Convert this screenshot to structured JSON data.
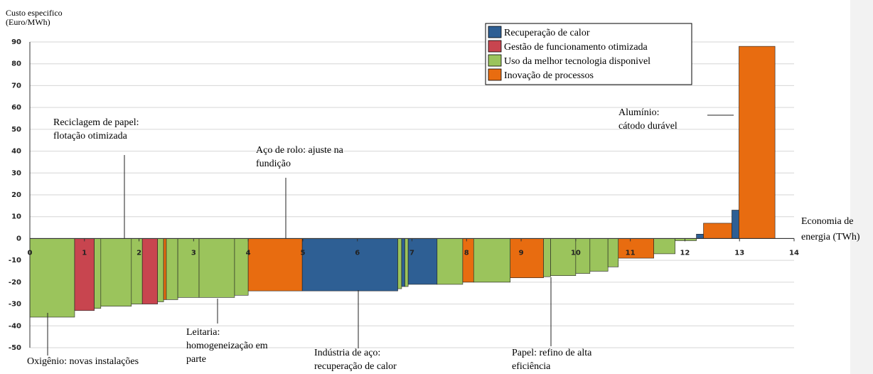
{
  "chart_data": {
    "type": "variable-width-bar",
    "ylabel": [
      "Custo especifico",
      "(Euro/MWh)"
    ],
    "xlabel": [
      "Economia de",
      "energia (TWh)"
    ],
    "xlim": [
      0,
      14
    ],
    "xticks": [
      0,
      1,
      2,
      3,
      4,
      5,
      6,
      7,
      8,
      9,
      10,
      11,
      12,
      13,
      14
    ],
    "ylim": [
      -50,
      90
    ],
    "yticks": [
      -50,
      -40,
      -30,
      -20,
      -10,
      0,
      10,
      20,
      30,
      40,
      50,
      60,
      70,
      80,
      90
    ],
    "grid": true,
    "series": [
      {
        "name": "Recuperação de calor",
        "color": "#2e5f94"
      },
      {
        "name": "Gestão de funcionamento otimizada",
        "color": "#c8454f"
      },
      {
        "name": "Uso da melhor tecnologia disponivel",
        "color": "#9bc45c"
      },
      {
        "name": "Inovação de processos",
        "color": "#e86c10"
      }
    ],
    "bars": {
      "widths": [
        0.82,
        0.36,
        0.12,
        0.56,
        0.2,
        0.28,
        0.11,
        0.05,
        0.21,
        0.39,
        0.65,
        0.25,
        0.99,
        1.75,
        0.07,
        0.06,
        0.06,
        0.53,
        0.47,
        0.2,
        0.67,
        0.61,
        0.13,
        0.46,
        0.26,
        0.33,
        0.19,
        0.65,
        0.39,
        0.39,
        0.13,
        0.52,
        0.13,
        0.66
      ],
      "values": [
        -36,
        -33,
        -32,
        -31,
        -30,
        -30,
        -29,
        -28,
        -28,
        -27,
        -27,
        -26,
        -24,
        -24,
        -23,
        -22,
        -22,
        -21,
        -21,
        -20,
        -20,
        -18,
        -17.5,
        -17,
        -16,
        -15,
        -13,
        -9,
        -7,
        -1,
        2,
        7,
        13,
        88
      ],
      "groups": [
        2,
        1,
        2,
        2,
        2,
        1,
        2,
        3,
        2,
        2,
        2,
        2,
        3,
        0,
        2,
        0,
        2,
        0,
        2,
        3,
        2,
        3,
        2,
        2,
        2,
        2,
        2,
        3,
        2,
        2,
        0,
        3,
        0,
        3
      ]
    },
    "annotations": [
      {
        "lines": [
          "Reciclagem de papel:",
          "flotação otimizada"
        ]
      },
      {
        "lines": [
          "Aço de rolo: ajuste na",
          "fundição"
        ]
      },
      {
        "lines": [
          "Alumínio:",
          "cátodo durável"
        ]
      },
      {
        "lines": [
          "Leitaria:",
          "homogeneização em",
          "parte"
        ]
      },
      {
        "lines": [
          "Oxigênio: novas instalações"
        ]
      },
      {
        "lines": [
          "Indústria de aço:",
          "recuperação de calor"
        ]
      },
      {
        "lines": [
          "Papel: refino de alta",
          "eficiência"
        ]
      }
    ]
  }
}
